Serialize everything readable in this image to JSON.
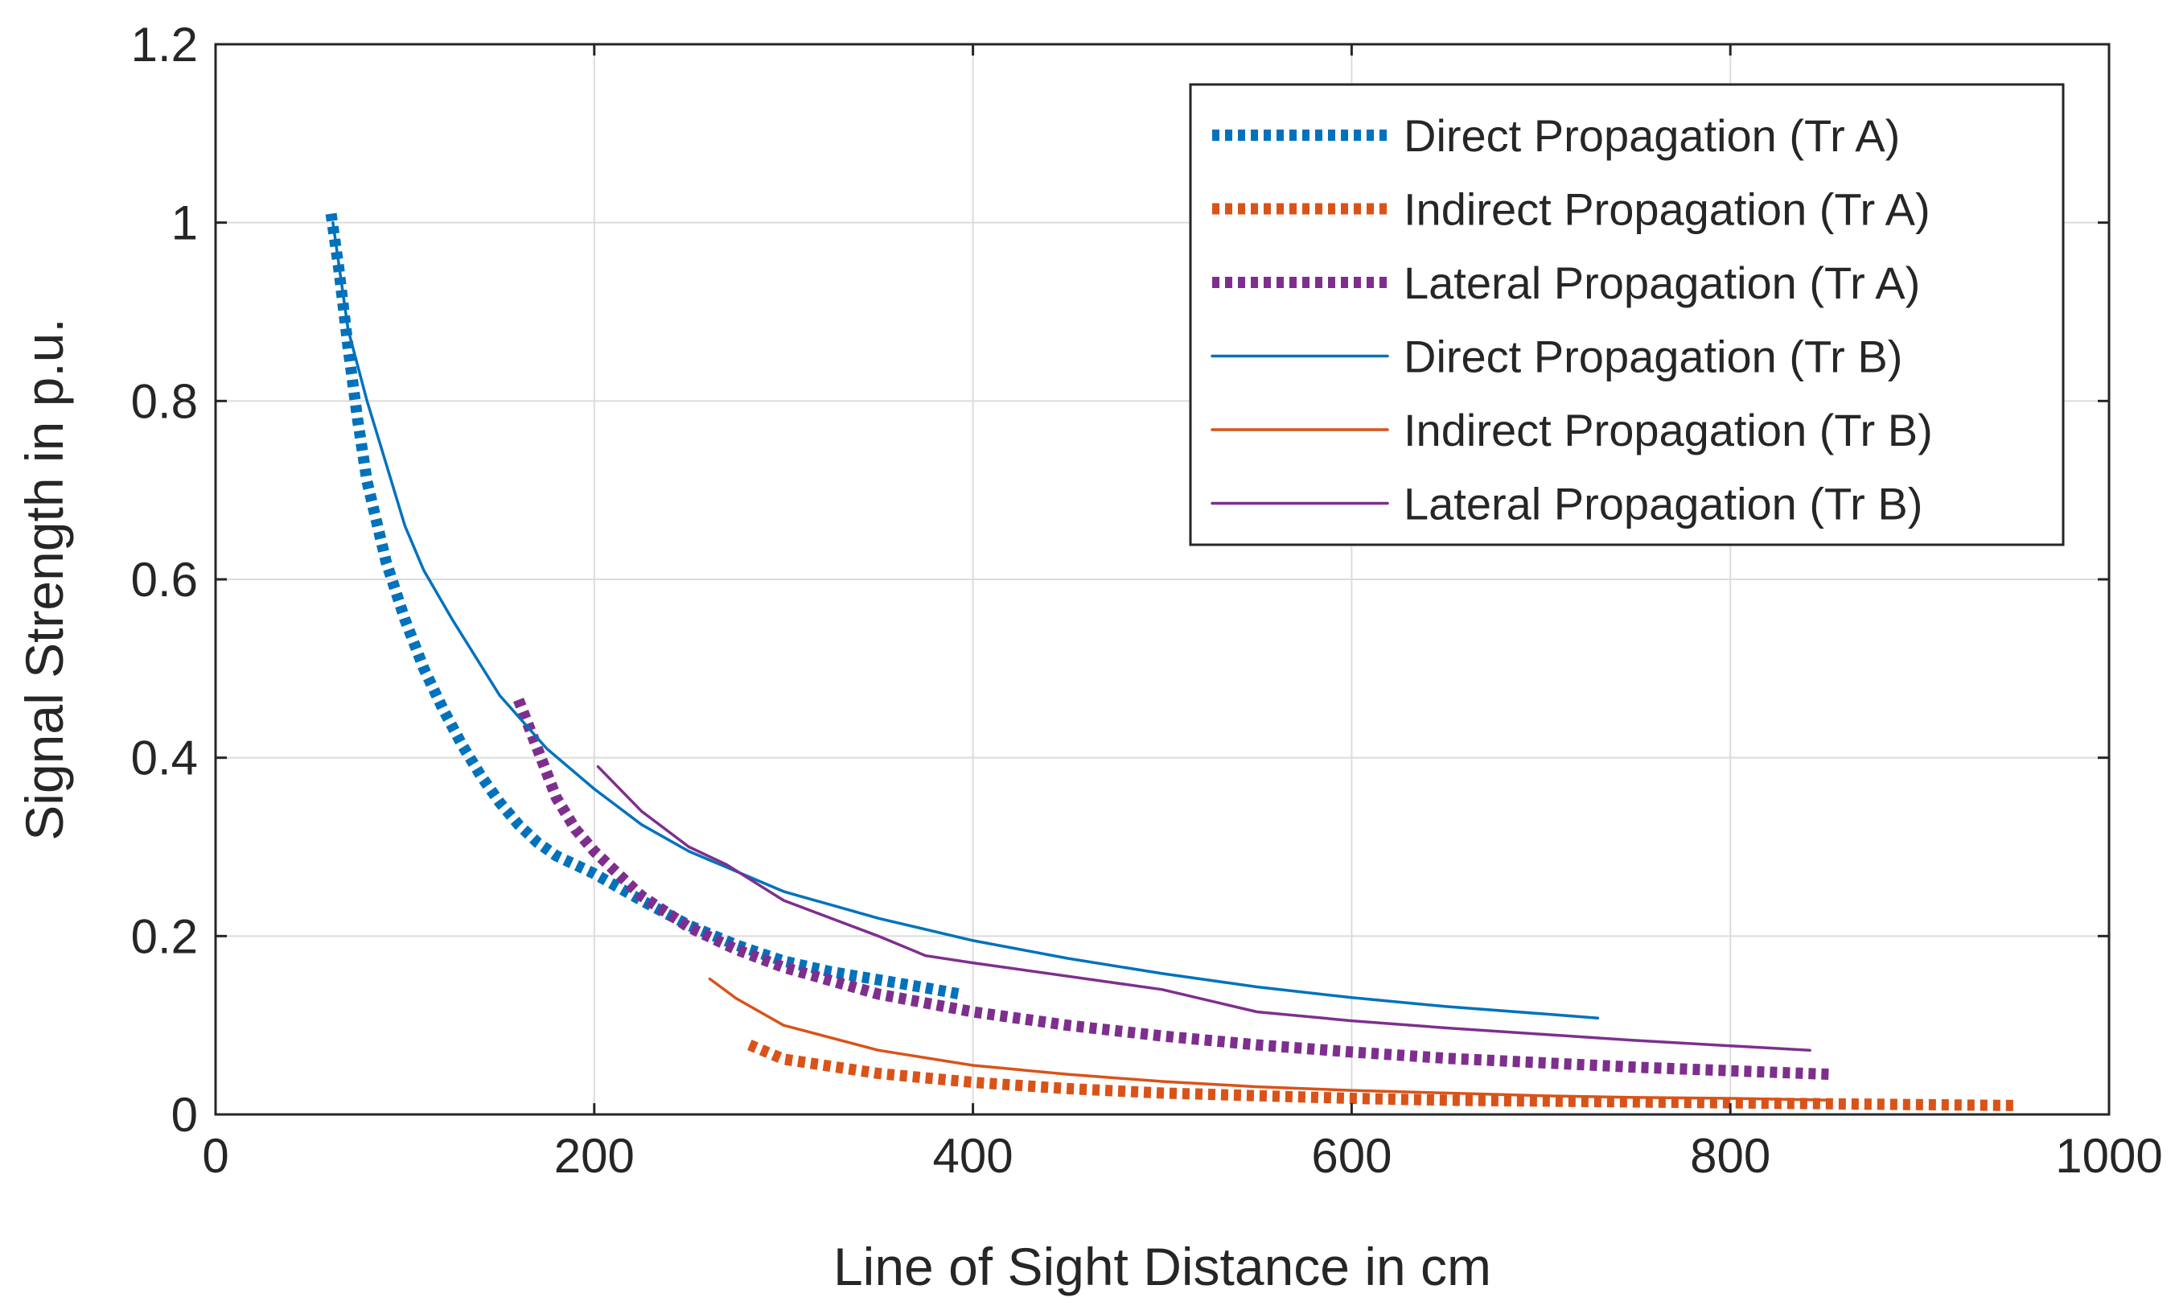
{
  "chart_data": {
    "type": "line",
    "xlabel": "Line of Sight Distance in cm",
    "ylabel": "Signal Strength in p.u.",
    "xlim": [
      0,
      1000
    ],
    "ylim": [
      0,
      1.2
    ],
    "xticks": [
      0,
      200,
      400,
      600,
      800,
      1000
    ],
    "xtick_labels": [
      "0",
      "200",
      "400",
      "600",
      "800",
      "1000"
    ],
    "yticks": [
      0,
      0.2,
      0.4,
      0.6,
      0.8,
      1,
      1.2
    ],
    "ytick_labels": [
      "0",
      "0.2",
      "0.4",
      "0.6",
      "0.8",
      "1",
      "1.2"
    ],
    "grid": true,
    "legend_position": "top-right",
    "series": [
      {
        "name": "Direct Propagation (Tr A)",
        "color": "#0072BD",
        "style": "dotted",
        "x": [
          61,
          65,
          70,
          75,
          80,
          90,
          100,
          110,
          120,
          130,
          140,
          150,
          160,
          170,
          180,
          190,
          200,
          225,
          250,
          275,
          300,
          325,
          350,
          375,
          393
        ],
        "y": [
          1.01,
          0.95,
          0.86,
          0.78,
          0.71,
          0.62,
          0.555,
          0.5,
          0.455,
          0.415,
          0.38,
          0.35,
          0.325,
          0.305,
          0.29,
          0.28,
          0.27,
          0.24,
          0.212,
          0.19,
          0.172,
          0.16,
          0.151,
          0.142,
          0.135
        ]
      },
      {
        "name": "Indirect Propagation (Tr A)",
        "color": "#D95319",
        "style": "dotted",
        "x": [
          282,
          300,
          350,
          400,
          450,
          500,
          550,
          600,
          650,
          700,
          750,
          800,
          850,
          900,
          950
        ],
        "y": [
          0.078,
          0.062,
          0.046,
          0.036,
          0.029,
          0.024,
          0.021,
          0.018,
          0.016,
          0.015,
          0.014,
          0.013,
          0.012,
          0.011,
          0.01
        ]
      },
      {
        "name": "Lateral Propagation (Tr A)",
        "color": "#7E2F8E",
        "style": "dotted",
        "x": [
          160,
          170,
          180,
          190,
          200,
          225,
          250,
          275,
          300,
          350,
          400,
          450,
          500,
          550,
          600,
          650,
          700,
          750,
          800,
          853
        ],
        "y": [
          0.465,
          0.41,
          0.355,
          0.32,
          0.295,
          0.245,
          0.21,
          0.185,
          0.165,
          0.135,
          0.115,
          0.1,
          0.088,
          0.078,
          0.07,
          0.063,
          0.058,
          0.053,
          0.049,
          0.045
        ]
      },
      {
        "name": "Direct Propagation (Tr B)",
        "color": "#0072BD",
        "style": "solid",
        "x": [
          62,
          70,
          80,
          90,
          100,
          110,
          125,
          150,
          175,
          200,
          225,
          250,
          300,
          350,
          400,
          450,
          500,
          550,
          600,
          650,
          700,
          730
        ],
        "y": [
          1.0,
          0.88,
          0.8,
          0.73,
          0.66,
          0.61,
          0.555,
          0.47,
          0.41,
          0.365,
          0.325,
          0.295,
          0.25,
          0.22,
          0.195,
          0.175,
          0.158,
          0.143,
          0.131,
          0.121,
          0.113,
          0.108
        ]
      },
      {
        "name": "Indirect Propagation (Tr B)",
        "color": "#D95319",
        "style": "solid",
        "x": [
          261,
          275,
          300,
          350,
          400,
          450,
          500,
          550,
          600,
          650,
          700,
          750,
          800,
          853
        ],
        "y": [
          0.152,
          0.13,
          0.1,
          0.072,
          0.055,
          0.045,
          0.037,
          0.031,
          0.027,
          0.024,
          0.021,
          0.019,
          0.018,
          0.016
        ]
      },
      {
        "name": "Lateral Propagation (Tr B)",
        "color": "#7E2F8E",
        "style": "solid",
        "x": [
          202,
          225,
          250,
          270,
          300,
          350,
          375,
          400,
          450,
          500,
          550,
          600,
          650,
          700,
          750,
          800,
          842
        ],
        "y": [
          0.39,
          0.34,
          0.3,
          0.28,
          0.24,
          0.2,
          0.178,
          0.17,
          0.155,
          0.14,
          0.115,
          0.105,
          0.097,
          0.09,
          0.083,
          0.077,
          0.072
        ]
      }
    ]
  }
}
